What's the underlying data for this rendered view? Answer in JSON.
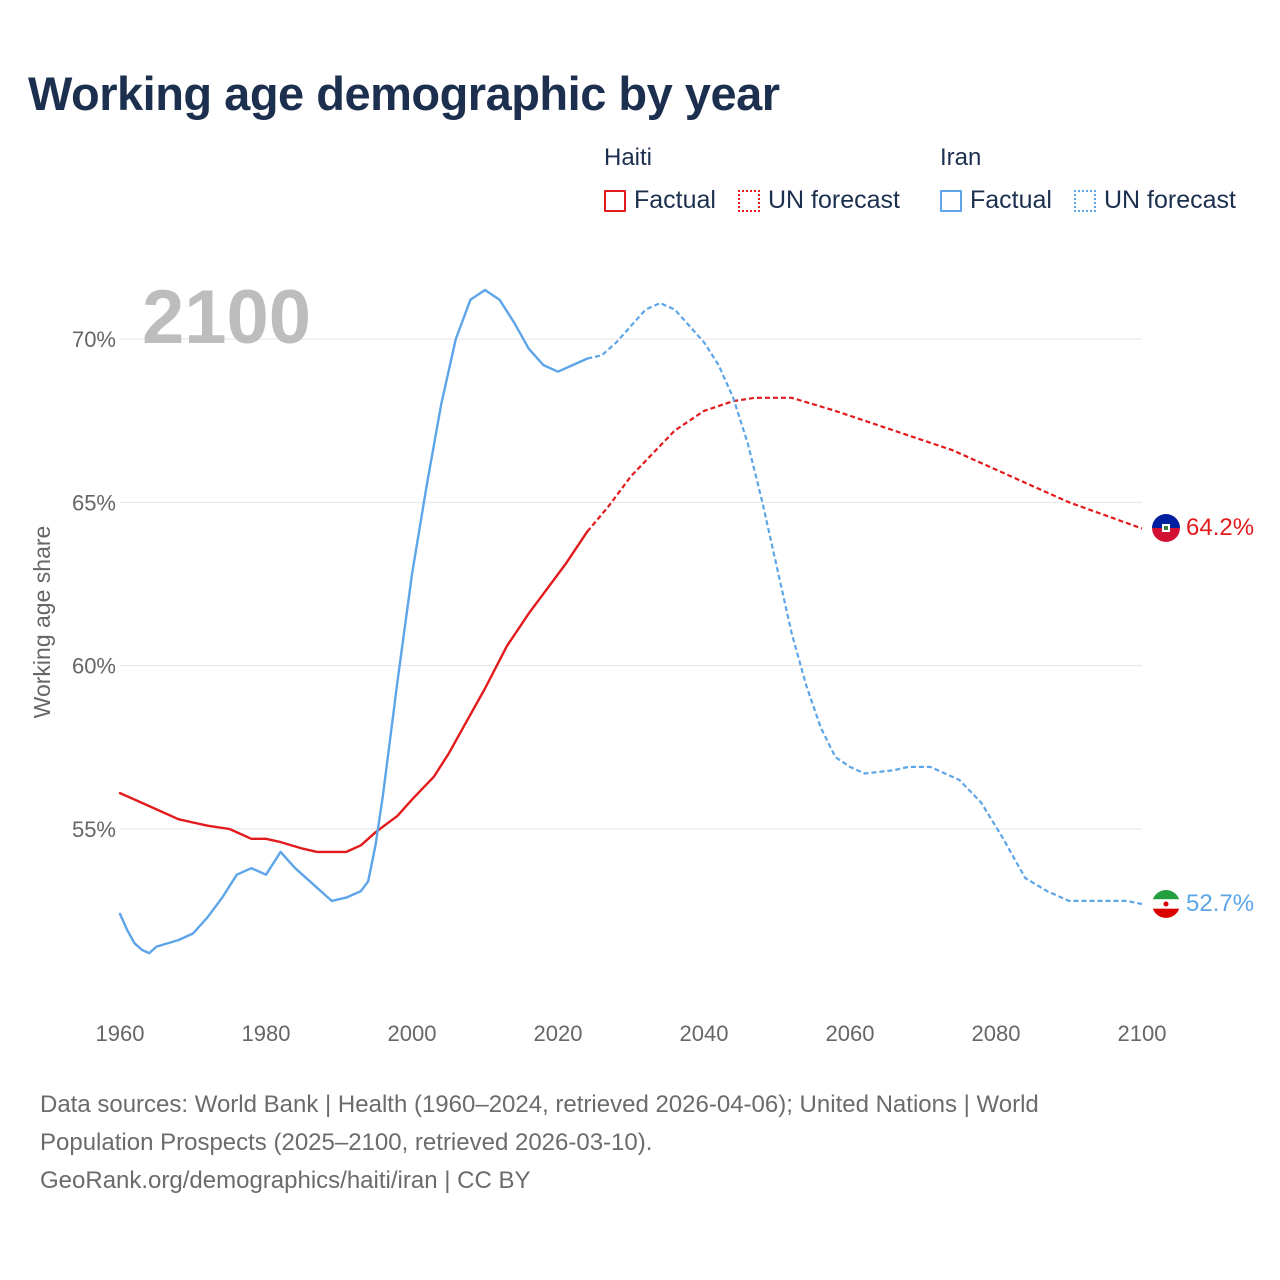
{
  "title": "Working age demographic by year",
  "legend": {
    "groups": [
      {
        "name": "Haiti",
        "color": "#e31a1c",
        "factual_label": "Factual",
        "forecast_label": "UN forecast"
      },
      {
        "name": "Iran",
        "color": "#5da5e8",
        "factual_label": "Factual",
        "forecast_label": "UN forecast"
      }
    ]
  },
  "sources": {
    "line1": "Data sources: World Bank | Health (1960–2024, retrieved 2026-04-06); United Nations | World",
    "line2": "Population Prospects (2025–2100, retrieved 2026-03-10).",
    "line3": "GeoRank.org/demographics/haiti/iran | CC BY"
  },
  "chart_data": {
    "type": "line",
    "current_year_label": "2100",
    "ylabel": "Working age share",
    "xlim": [
      1960,
      2100
    ],
    "ylim": [
      50,
      72
    ],
    "x_ticks": [
      "1960",
      "1980",
      "2000",
      "2020",
      "2040",
      "2060",
      "2080",
      "2100"
    ],
    "y_ticks": [
      {
        "value": 55,
        "label": "55%"
      },
      {
        "value": 60,
        "label": "60%"
      },
      {
        "value": 65,
        "label": "65%"
      },
      {
        "value": 70,
        "label": "70%"
      }
    ],
    "factual_end_year": 2024,
    "series": [
      {
        "name": "Haiti",
        "color": "#e31a1c",
        "flag_icon": "haiti-flag-icon",
        "end_label": "64.2%",
        "points": [
          [
            1960,
            56.1
          ],
          [
            1965,
            55.6
          ],
          [
            1968,
            55.3
          ],
          [
            1970,
            55.2
          ],
          [
            1972,
            55.1
          ],
          [
            1975,
            55.0
          ],
          [
            1978,
            54.7
          ],
          [
            1980,
            54.7
          ],
          [
            1982,
            54.6
          ],
          [
            1985,
            54.4
          ],
          [
            1987,
            54.3
          ],
          [
            1991,
            54.3
          ],
          [
            1993,
            54.5
          ],
          [
            1995,
            54.9
          ],
          [
            1998,
            55.4
          ],
          [
            2000,
            55.9
          ],
          [
            2003,
            56.6
          ],
          [
            2005,
            57.3
          ],
          [
            2007,
            58.1
          ],
          [
            2010,
            59.3
          ],
          [
            2013,
            60.6
          ],
          [
            2016,
            61.6
          ],
          [
            2018,
            62.2
          ],
          [
            2021,
            63.1
          ],
          [
            2024,
            64.1
          ],
          [
            2027,
            64.9
          ],
          [
            2030,
            65.8
          ],
          [
            2033,
            66.5
          ],
          [
            2036,
            67.2
          ],
          [
            2040,
            67.8
          ],
          [
            2044,
            68.1
          ],
          [
            2047,
            68.2
          ],
          [
            2052,
            68.2
          ],
          [
            2055,
            68.0
          ],
          [
            2058,
            67.8
          ],
          [
            2062,
            67.5
          ],
          [
            2066,
            67.2
          ],
          [
            2070,
            66.9
          ],
          [
            2074,
            66.6
          ],
          [
            2078,
            66.2
          ],
          [
            2082,
            65.8
          ],
          [
            2086,
            65.4
          ],
          [
            2090,
            65.0
          ],
          [
            2095,
            64.6
          ],
          [
            2100,
            64.2
          ]
        ]
      },
      {
        "name": "Iran",
        "color": "#5da5e8",
        "flag_icon": "iran-flag-icon",
        "end_label": "52.7%",
        "points": [
          [
            1960,
            52.4
          ],
          [
            1961,
            51.9
          ],
          [
            1962,
            51.5
          ],
          [
            1963,
            51.3
          ],
          [
            1964,
            51.2
          ],
          [
            1965,
            51.4
          ],
          [
            1968,
            51.6
          ],
          [
            1970,
            51.8
          ],
          [
            1972,
            52.3
          ],
          [
            1974,
            52.9
          ],
          [
            1976,
            53.6
          ],
          [
            1978,
            53.8
          ],
          [
            1980,
            53.6
          ],
          [
            1982,
            54.3
          ],
          [
            1984,
            53.8
          ],
          [
            1987,
            53.2
          ],
          [
            1989,
            52.8
          ],
          [
            1991,
            52.9
          ],
          [
            1993,
            53.1
          ],
          [
            1994,
            53.4
          ],
          [
            1995,
            54.5
          ],
          [
            1996,
            56.0
          ],
          [
            1998,
            59.5
          ],
          [
            2000,
            62.8
          ],
          [
            2002,
            65.5
          ],
          [
            2004,
            68.0
          ],
          [
            2006,
            70.0
          ],
          [
            2008,
            71.2
          ],
          [
            2010,
            71.5
          ],
          [
            2012,
            71.2
          ],
          [
            2014,
            70.5
          ],
          [
            2016,
            69.7
          ],
          [
            2018,
            69.2
          ],
          [
            2020,
            69.0
          ],
          [
            2022,
            69.2
          ],
          [
            2024,
            69.4
          ],
          [
            2026,
            69.5
          ],
          [
            2028,
            69.9
          ],
          [
            2030,
            70.4
          ],
          [
            2032,
            70.9
          ],
          [
            2034,
            71.1
          ],
          [
            2036,
            70.9
          ],
          [
            2038,
            70.4
          ],
          [
            2040,
            69.9
          ],
          [
            2042,
            69.2
          ],
          [
            2044,
            68.2
          ],
          [
            2046,
            66.8
          ],
          [
            2048,
            65.0
          ],
          [
            2050,
            63.0
          ],
          [
            2052,
            61.0
          ],
          [
            2054,
            59.4
          ],
          [
            2056,
            58.1
          ],
          [
            2058,
            57.2
          ],
          [
            2060,
            56.9
          ],
          [
            2062,
            56.7
          ],
          [
            2066,
            56.8
          ],
          [
            2068,
            56.9
          ],
          [
            2071,
            56.9
          ],
          [
            2075,
            56.5
          ],
          [
            2078,
            55.8
          ],
          [
            2081,
            54.7
          ],
          [
            2084,
            53.5
          ],
          [
            2087,
            53.1
          ],
          [
            2090,
            52.8
          ],
          [
            2095,
            52.8
          ],
          [
            2098,
            52.8
          ],
          [
            2100,
            52.7
          ]
        ]
      }
    ]
  }
}
